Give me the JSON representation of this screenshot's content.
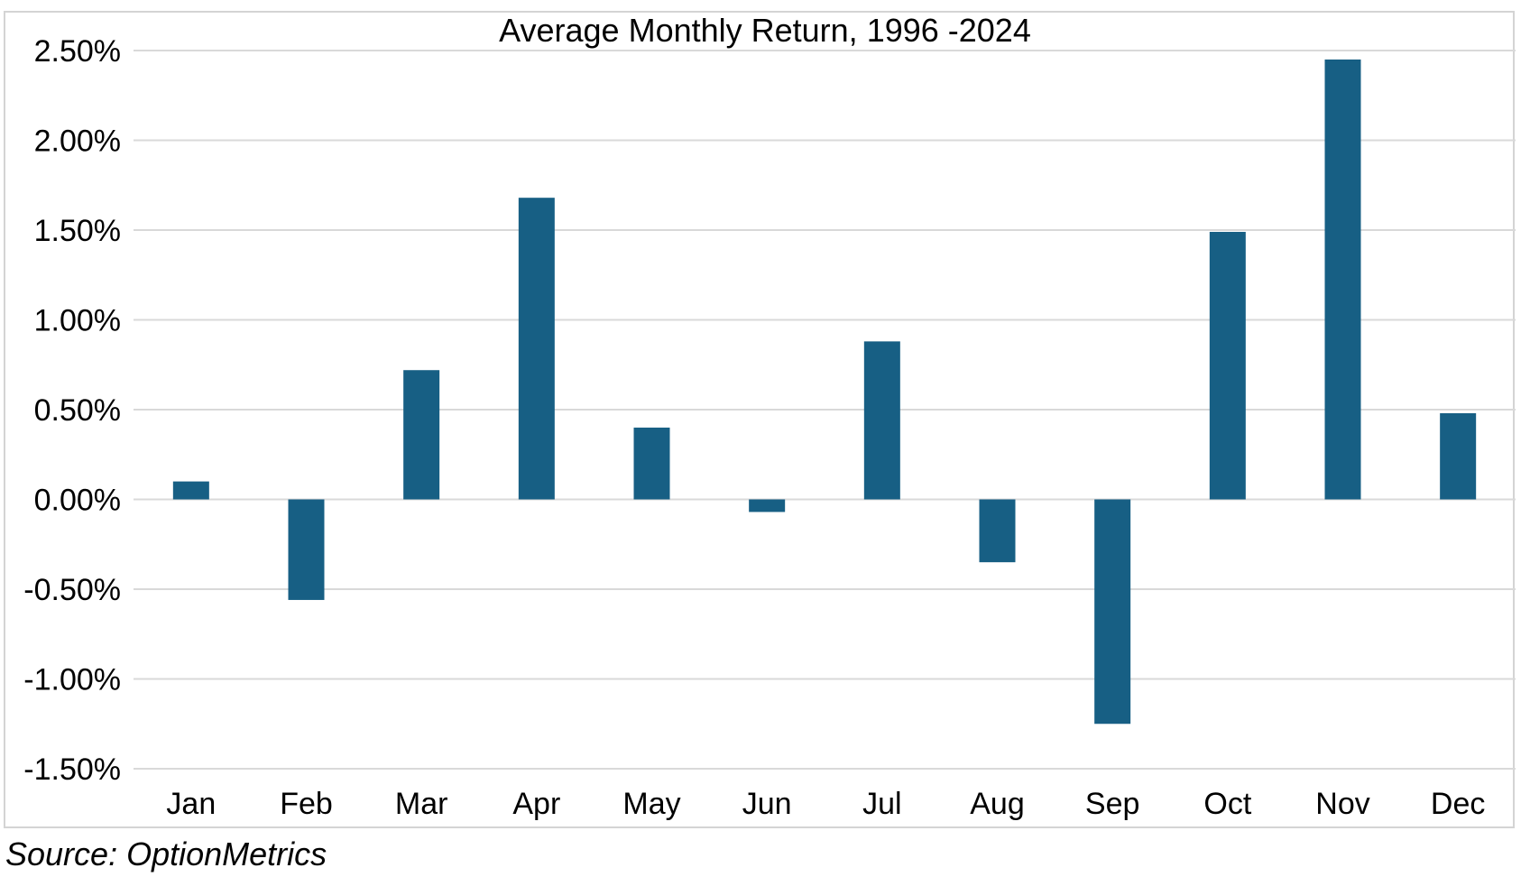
{
  "chart_data": {
    "type": "bar",
    "title": "Average Monthly Return, 1996 -2024",
    "xlabel": "",
    "ylabel": "",
    "categories": [
      "Jan",
      "Feb",
      "Mar",
      "Apr",
      "May",
      "Jun",
      "Jul",
      "Aug",
      "Sep",
      "Oct",
      "Nov",
      "Dec"
    ],
    "values": [
      0.1,
      -0.56,
      0.72,
      1.68,
      0.4,
      -0.07,
      0.88,
      -0.35,
      -1.25,
      1.49,
      2.45,
      0.48
    ],
    "value_unit": "%",
    "ylim": [
      -1.5,
      2.5
    ],
    "yticks": [
      2.5,
      2.0,
      1.5,
      1.0,
      0.5,
      0.0,
      -0.5,
      -1.0,
      -1.5
    ],
    "ytick_labels": [
      "2.50%",
      "2.00%",
      "1.50%",
      "1.00%",
      "0.50%",
      "0.00%",
      "-0.50%",
      "-1.00%",
      "-1.50%"
    ],
    "grid": true,
    "legend": "none",
    "bar_color": "#175f84",
    "gridline_color": "#d9d9d9"
  },
  "source": "Source: OptionMetrics"
}
